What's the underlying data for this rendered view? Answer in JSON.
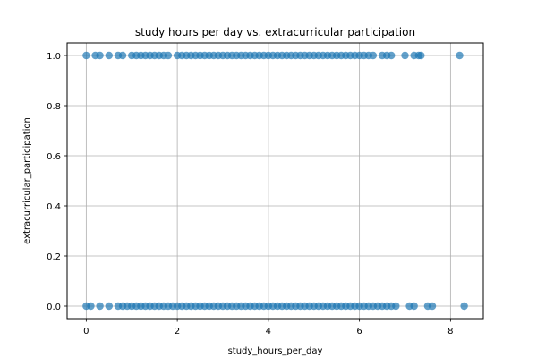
{
  "chart_data": {
    "type": "scatter",
    "title": "study hours per day vs. extracurricular participation",
    "xlabel": "study_hours_per_day",
    "ylabel": "extracurricular_participation",
    "xlim": [
      -0.42,
      8.72
    ],
    "ylim": [
      -0.05,
      1.05
    ],
    "x_ticks": [
      0,
      2,
      4,
      6,
      8
    ],
    "y_ticks": [
      0.0,
      0.2,
      0.4,
      0.6,
      0.8,
      1.0
    ],
    "x_tick_labels": [
      "0",
      "2",
      "4",
      "6",
      "8"
    ],
    "y_tick_labels": [
      "0.0",
      "0.2",
      "0.4",
      "0.6",
      "0.8",
      "1.0"
    ],
    "grid": true,
    "legend": "none",
    "point_color": "#1f77b4",
    "points_y1": [
      {
        "x": 0.0,
        "y": 1
      },
      {
        "x": 0.2,
        "y": 1
      },
      {
        "x": 0.3,
        "y": 1
      },
      {
        "x": 0.5,
        "y": 1
      },
      {
        "x": 0.7,
        "y": 1
      },
      {
        "x": 0.8,
        "y": 1
      },
      {
        "x": 1.0,
        "y": 1
      },
      {
        "x": 1.1,
        "y": 1
      },
      {
        "x": 1.2,
        "y": 1
      },
      {
        "x": 1.3,
        "y": 1
      },
      {
        "x": 1.4,
        "y": 1
      },
      {
        "x": 1.5,
        "y": 1
      },
      {
        "x": 1.6,
        "y": 1
      },
      {
        "x": 1.7,
        "y": 1
      },
      {
        "x": 1.8,
        "y": 1
      },
      {
        "x": 2.0,
        "y": 1
      },
      {
        "x": 2.1,
        "y": 1
      },
      {
        "x": 2.2,
        "y": 1
      },
      {
        "x": 2.3,
        "y": 1
      },
      {
        "x": 2.4,
        "y": 1
      },
      {
        "x": 2.5,
        "y": 1
      },
      {
        "x": 2.6,
        "y": 1
      },
      {
        "x": 2.7,
        "y": 1
      },
      {
        "x": 2.8,
        "y": 1
      },
      {
        "x": 2.9,
        "y": 1
      },
      {
        "x": 3.0,
        "y": 1
      },
      {
        "x": 3.1,
        "y": 1
      },
      {
        "x": 3.2,
        "y": 1
      },
      {
        "x": 3.3,
        "y": 1
      },
      {
        "x": 3.4,
        "y": 1
      },
      {
        "x": 3.5,
        "y": 1
      },
      {
        "x": 3.6,
        "y": 1
      },
      {
        "x": 3.7,
        "y": 1
      },
      {
        "x": 3.8,
        "y": 1
      },
      {
        "x": 3.9,
        "y": 1
      },
      {
        "x": 4.0,
        "y": 1
      },
      {
        "x": 4.1,
        "y": 1
      },
      {
        "x": 4.2,
        "y": 1
      },
      {
        "x": 4.3,
        "y": 1
      },
      {
        "x": 4.4,
        "y": 1
      },
      {
        "x": 4.5,
        "y": 1
      },
      {
        "x": 4.6,
        "y": 1
      },
      {
        "x": 4.7,
        "y": 1
      },
      {
        "x": 4.8,
        "y": 1
      },
      {
        "x": 4.9,
        "y": 1
      },
      {
        "x": 5.0,
        "y": 1
      },
      {
        "x": 5.1,
        "y": 1
      },
      {
        "x": 5.2,
        "y": 1
      },
      {
        "x": 5.3,
        "y": 1
      },
      {
        "x": 5.4,
        "y": 1
      },
      {
        "x": 5.5,
        "y": 1
      },
      {
        "x": 5.6,
        "y": 1
      },
      {
        "x": 5.7,
        "y": 1
      },
      {
        "x": 5.8,
        "y": 1
      },
      {
        "x": 5.9,
        "y": 1
      },
      {
        "x": 6.0,
        "y": 1
      },
      {
        "x": 6.1,
        "y": 1
      },
      {
        "x": 6.2,
        "y": 1
      },
      {
        "x": 6.3,
        "y": 1
      },
      {
        "x": 6.5,
        "y": 1
      },
      {
        "x": 6.6,
        "y": 1
      },
      {
        "x": 6.7,
        "y": 1
      },
      {
        "x": 7.0,
        "y": 1
      },
      {
        "x": 7.2,
        "y": 1
      },
      {
        "x": 7.3,
        "y": 1
      },
      {
        "x": 7.35,
        "y": 1
      },
      {
        "x": 8.2,
        "y": 1
      }
    ],
    "points_y0": [
      {
        "x": 0.0,
        "y": 0
      },
      {
        "x": 0.1,
        "y": 0
      },
      {
        "x": 0.3,
        "y": 0
      },
      {
        "x": 0.5,
        "y": 0
      },
      {
        "x": 0.7,
        "y": 0
      },
      {
        "x": 0.8,
        "y": 0
      },
      {
        "x": 0.9,
        "y": 0
      },
      {
        "x": 1.0,
        "y": 0
      },
      {
        "x": 1.1,
        "y": 0
      },
      {
        "x": 1.2,
        "y": 0
      },
      {
        "x": 1.3,
        "y": 0
      },
      {
        "x": 1.4,
        "y": 0
      },
      {
        "x": 1.5,
        "y": 0
      },
      {
        "x": 1.6,
        "y": 0
      },
      {
        "x": 1.7,
        "y": 0
      },
      {
        "x": 1.8,
        "y": 0
      },
      {
        "x": 1.9,
        "y": 0
      },
      {
        "x": 2.0,
        "y": 0
      },
      {
        "x": 2.1,
        "y": 0
      },
      {
        "x": 2.2,
        "y": 0
      },
      {
        "x": 2.3,
        "y": 0
      },
      {
        "x": 2.4,
        "y": 0
      },
      {
        "x": 2.5,
        "y": 0
      },
      {
        "x": 2.6,
        "y": 0
      },
      {
        "x": 2.7,
        "y": 0
      },
      {
        "x": 2.8,
        "y": 0
      },
      {
        "x": 2.9,
        "y": 0
      },
      {
        "x": 3.0,
        "y": 0
      },
      {
        "x": 3.1,
        "y": 0
      },
      {
        "x": 3.2,
        "y": 0
      },
      {
        "x": 3.3,
        "y": 0
      },
      {
        "x": 3.4,
        "y": 0
      },
      {
        "x": 3.5,
        "y": 0
      },
      {
        "x": 3.6,
        "y": 0
      },
      {
        "x": 3.7,
        "y": 0
      },
      {
        "x": 3.8,
        "y": 0
      },
      {
        "x": 3.9,
        "y": 0
      },
      {
        "x": 4.0,
        "y": 0
      },
      {
        "x": 4.1,
        "y": 0
      },
      {
        "x": 4.2,
        "y": 0
      },
      {
        "x": 4.3,
        "y": 0
      },
      {
        "x": 4.4,
        "y": 0
      },
      {
        "x": 4.5,
        "y": 0
      },
      {
        "x": 4.6,
        "y": 0
      },
      {
        "x": 4.7,
        "y": 0
      },
      {
        "x": 4.8,
        "y": 0
      },
      {
        "x": 4.9,
        "y": 0
      },
      {
        "x": 5.0,
        "y": 0
      },
      {
        "x": 5.1,
        "y": 0
      },
      {
        "x": 5.2,
        "y": 0
      },
      {
        "x": 5.3,
        "y": 0
      },
      {
        "x": 5.4,
        "y": 0
      },
      {
        "x": 5.5,
        "y": 0
      },
      {
        "x": 5.6,
        "y": 0
      },
      {
        "x": 5.7,
        "y": 0
      },
      {
        "x": 5.8,
        "y": 0
      },
      {
        "x": 5.9,
        "y": 0
      },
      {
        "x": 6.0,
        "y": 0
      },
      {
        "x": 6.1,
        "y": 0
      },
      {
        "x": 6.2,
        "y": 0
      },
      {
        "x": 6.3,
        "y": 0
      },
      {
        "x": 6.4,
        "y": 0
      },
      {
        "x": 6.5,
        "y": 0
      },
      {
        "x": 6.6,
        "y": 0
      },
      {
        "x": 6.7,
        "y": 0
      },
      {
        "x": 6.8,
        "y": 0
      },
      {
        "x": 7.1,
        "y": 0
      },
      {
        "x": 7.2,
        "y": 0
      },
      {
        "x": 7.5,
        "y": 0
      },
      {
        "x": 7.6,
        "y": 0
      },
      {
        "x": 8.3,
        "y": 0
      }
    ]
  }
}
